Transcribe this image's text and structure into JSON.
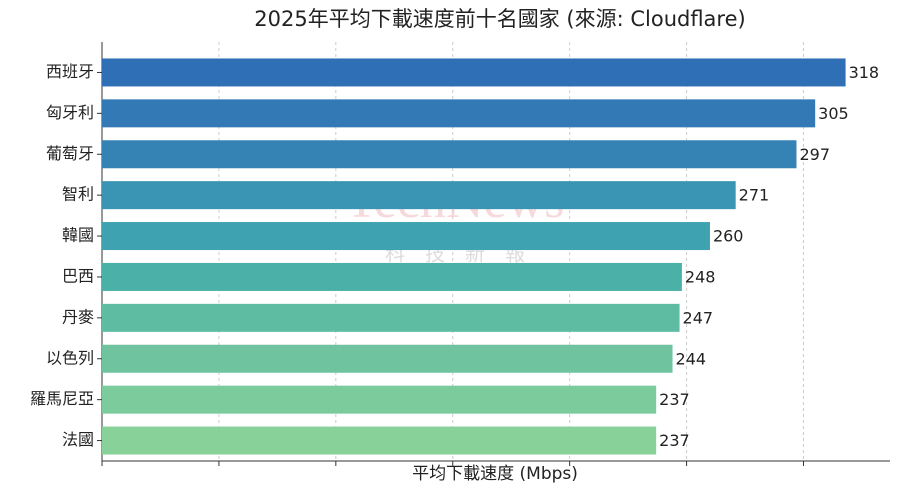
{
  "chart_data": {
    "type": "barh",
    "title": "2025年平均下載速度前十名國家 (來源: Cloudflare)",
    "xlabel": "平均下載速度 (Mbps)",
    "watermark": "TechNews",
    "watermark_sub": "科　技　新　報",
    "categories": [
      "西班牙",
      "匈牙利",
      "葡萄牙",
      "智利",
      "韓國",
      "巴西",
      "丹麥",
      "以色列",
      "羅馬尼亞",
      "法國"
    ],
    "values": [
      318,
      305,
      297,
      271,
      260,
      248,
      247,
      244,
      237,
      237
    ],
    "colors": [
      "#2f6fb5",
      "#3279b6",
      "#3583b5",
      "#3a94b3",
      "#3ea2b0",
      "#4bb1a8",
      "#5ebca2",
      "#6fc49f",
      "#7ccb9c",
      "#88d29a"
    ],
    "xlim": [
      0,
      337
    ],
    "xticks": [
      0,
      50,
      100,
      150,
      200,
      250,
      300
    ],
    "grid": true
  }
}
